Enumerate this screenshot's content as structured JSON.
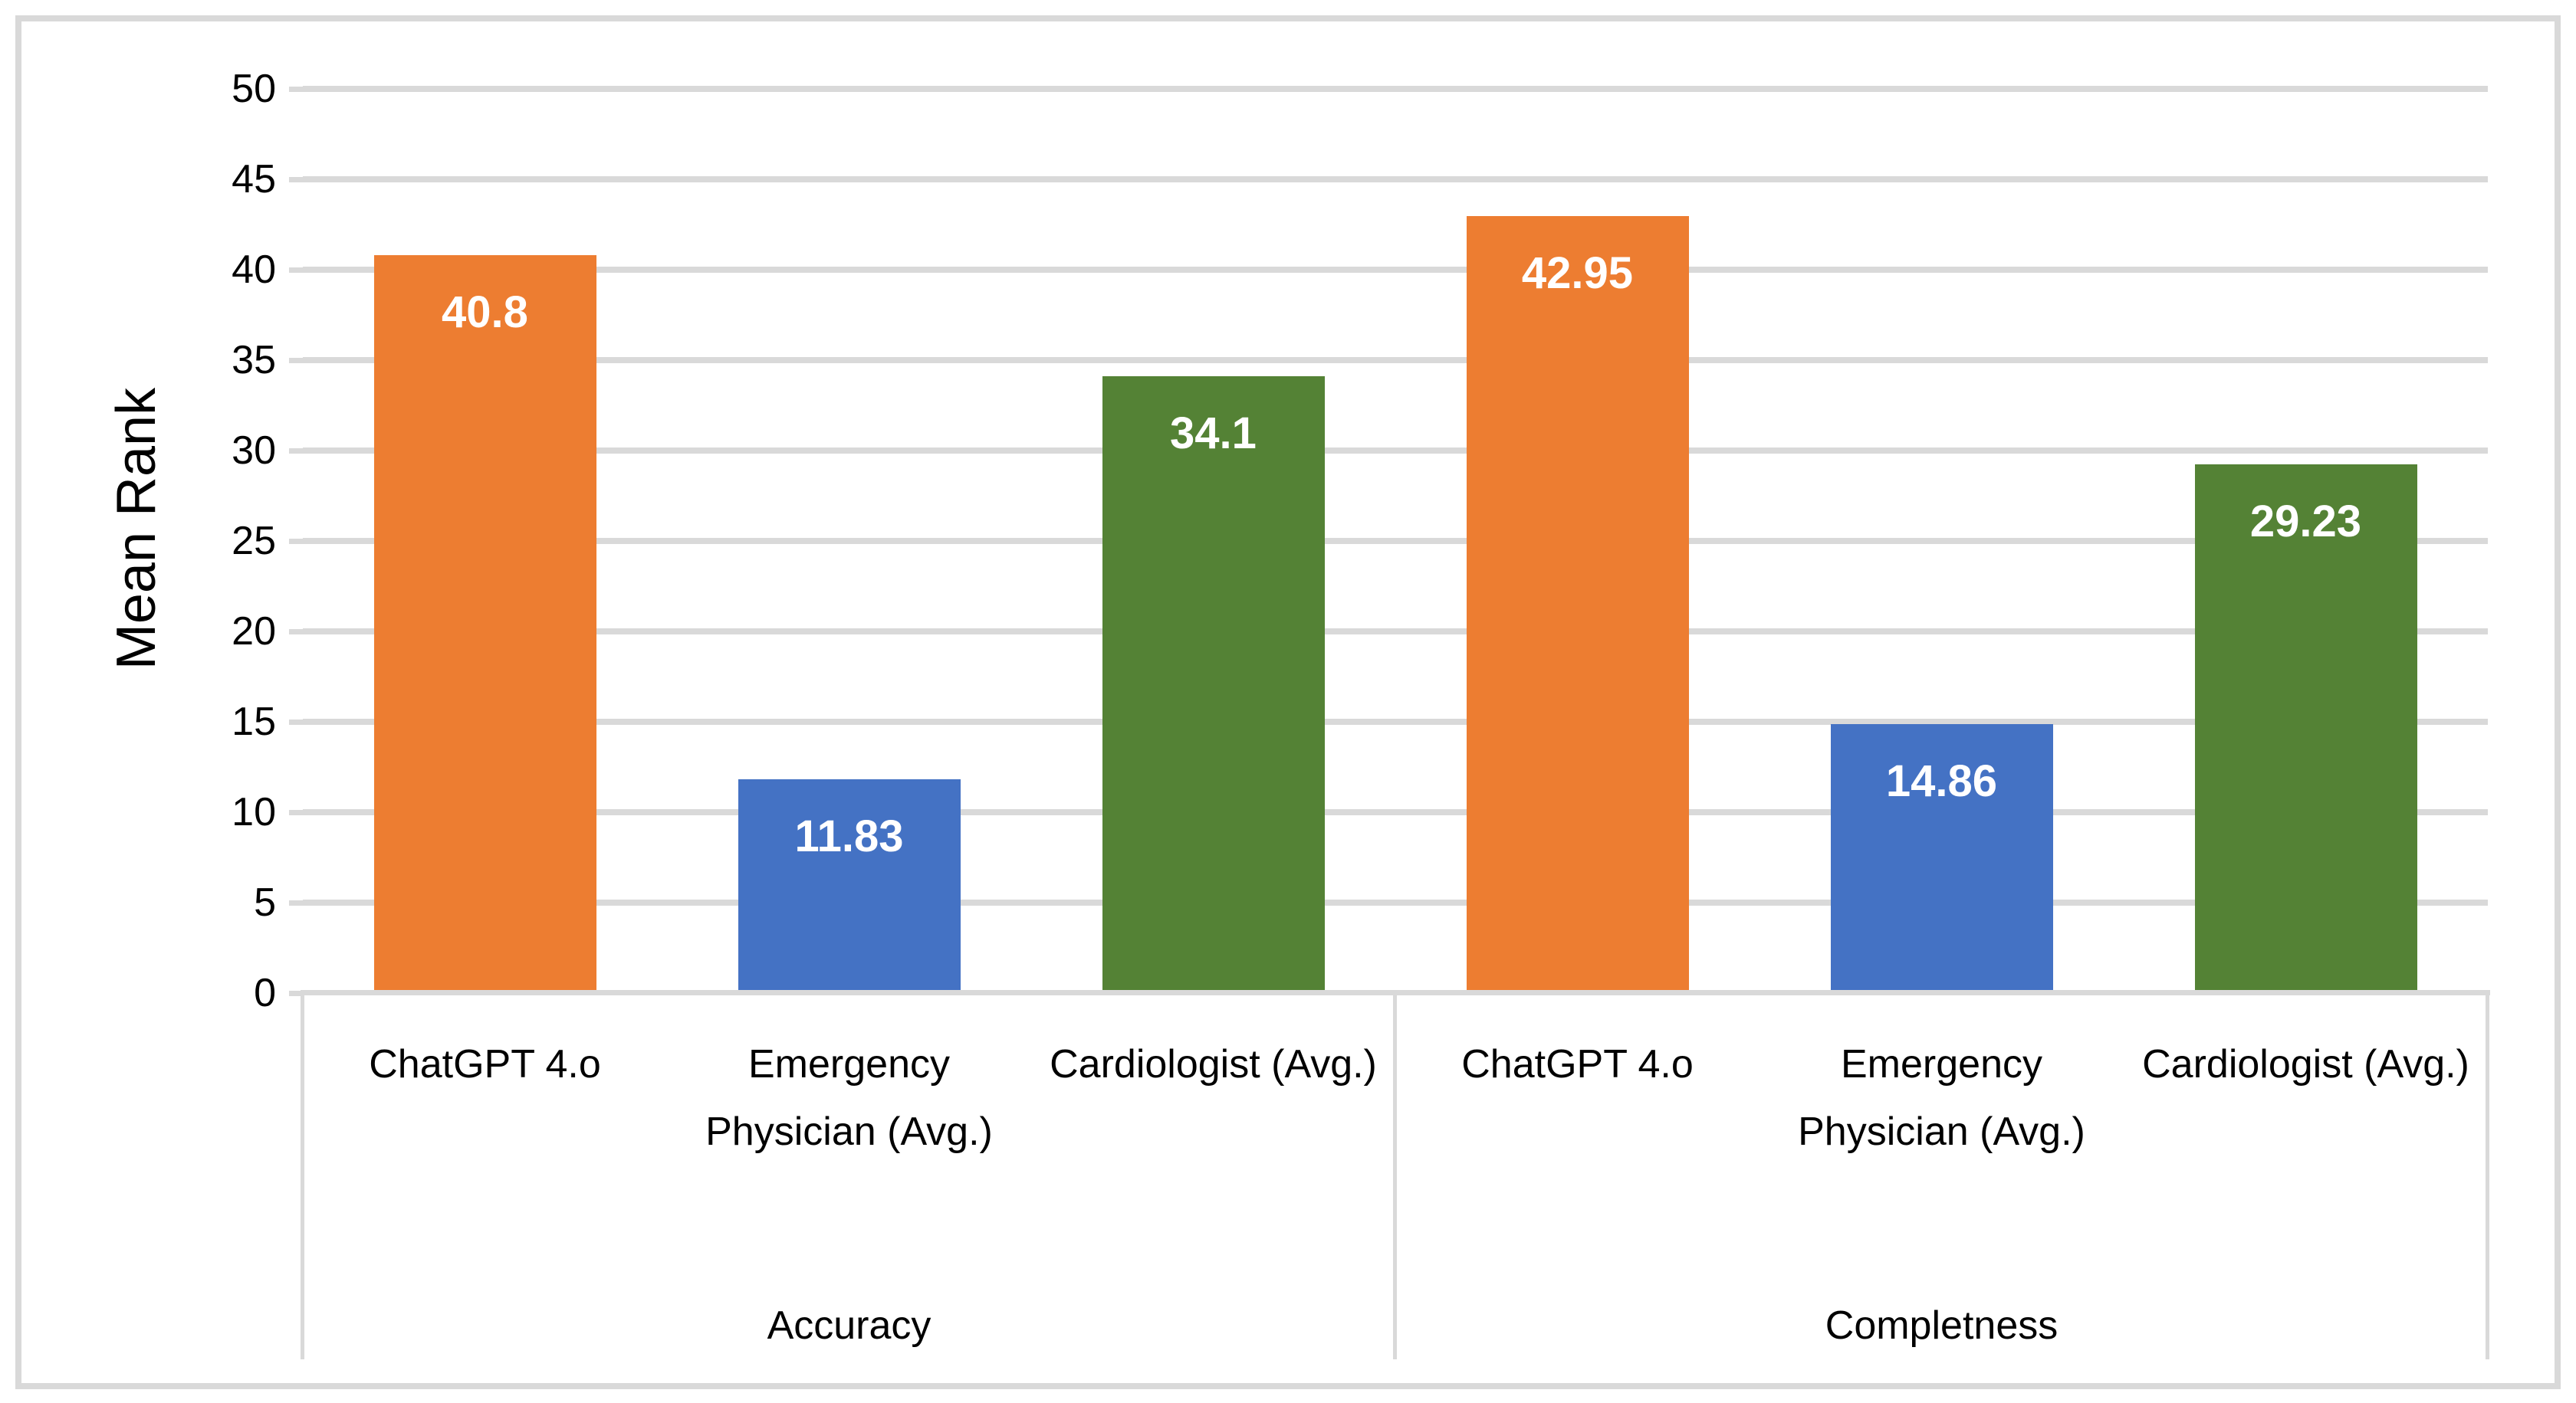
{
  "chart_data": {
    "type": "bar",
    "title": "",
    "ylabel": "Mean Rank",
    "xlabel": "",
    "ylim": [
      0,
      50
    ],
    "yticks": [
      0,
      5,
      10,
      15,
      20,
      25,
      30,
      35,
      40,
      45,
      50
    ],
    "grid": true,
    "legend": "none",
    "categories": [
      "ChatGPT 4.o",
      "Emergency Physician (Avg.)",
      "Cardiologist (Avg.)"
    ],
    "groups": [
      {
        "label": "Accuracy",
        "categories": [
          "ChatGPT 4.o",
          "Emergency Physician (Avg.)",
          "Cardiologist (Avg.)"
        ],
        "values": [
          40.8,
          11.83,
          34.1
        ],
        "value_labels": [
          "40.8",
          "11.83",
          "34.1"
        ]
      },
      {
        "label": "Completness",
        "categories": [
          "ChatGPT 4.o",
          "Emergency Physician (Avg.)",
          "Cardiologist (Avg.)"
        ],
        "values": [
          42.95,
          14.86,
          29.23
        ],
        "value_labels": [
          "42.95",
          "14.86",
          "29.23"
        ]
      }
    ],
    "series_colors": [
      "#ED7D31",
      "#4472C4",
      "#548235"
    ],
    "colors": {
      "orange_bar": "#ED7D31",
      "blue_bar": "#4472C4",
      "green_bar": "#548235",
      "gridline": "#D9D9D9",
      "frame": "#D9D9D9",
      "axis_text": "#000000",
      "value_label_text": "#FFFFFF",
      "background": "#FFFFFF"
    }
  }
}
